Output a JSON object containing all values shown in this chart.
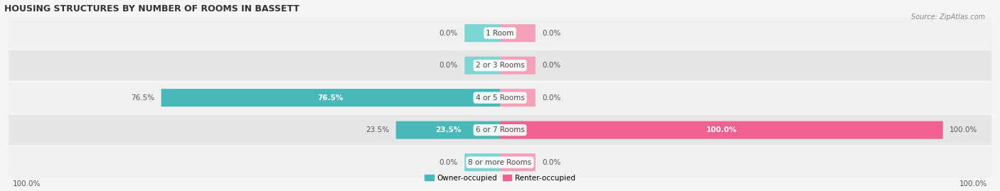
{
  "title": "HOUSING STRUCTURES BY NUMBER OF ROOMS IN BASSETT",
  "source": "Source: ZipAtlas.com",
  "categories": [
    "1 Room",
    "2 or 3 Rooms",
    "4 or 5 Rooms",
    "6 or 7 Rooms",
    "8 or more Rooms"
  ],
  "owner_values": [
    0.0,
    0.0,
    76.5,
    23.5,
    0.0
  ],
  "renter_values": [
    0.0,
    0.0,
    0.0,
    100.0,
    0.0
  ],
  "owner_color": "#4ab8b8",
  "renter_color": "#f06090",
  "owner_color_light": "#7dd4d4",
  "renter_color_light": "#f4a0b8",
  "row_bg_light": "#f0f0f0",
  "row_bg_dark": "#e6e6e6",
  "stub_size": 8.0,
  "max_value": 100.0,
  "bar_height": 0.55,
  "figsize": [
    14.06,
    2.69
  ],
  "dpi": 100,
  "label_bottom_left": "100.0%",
  "label_bottom_right": "100.0%"
}
